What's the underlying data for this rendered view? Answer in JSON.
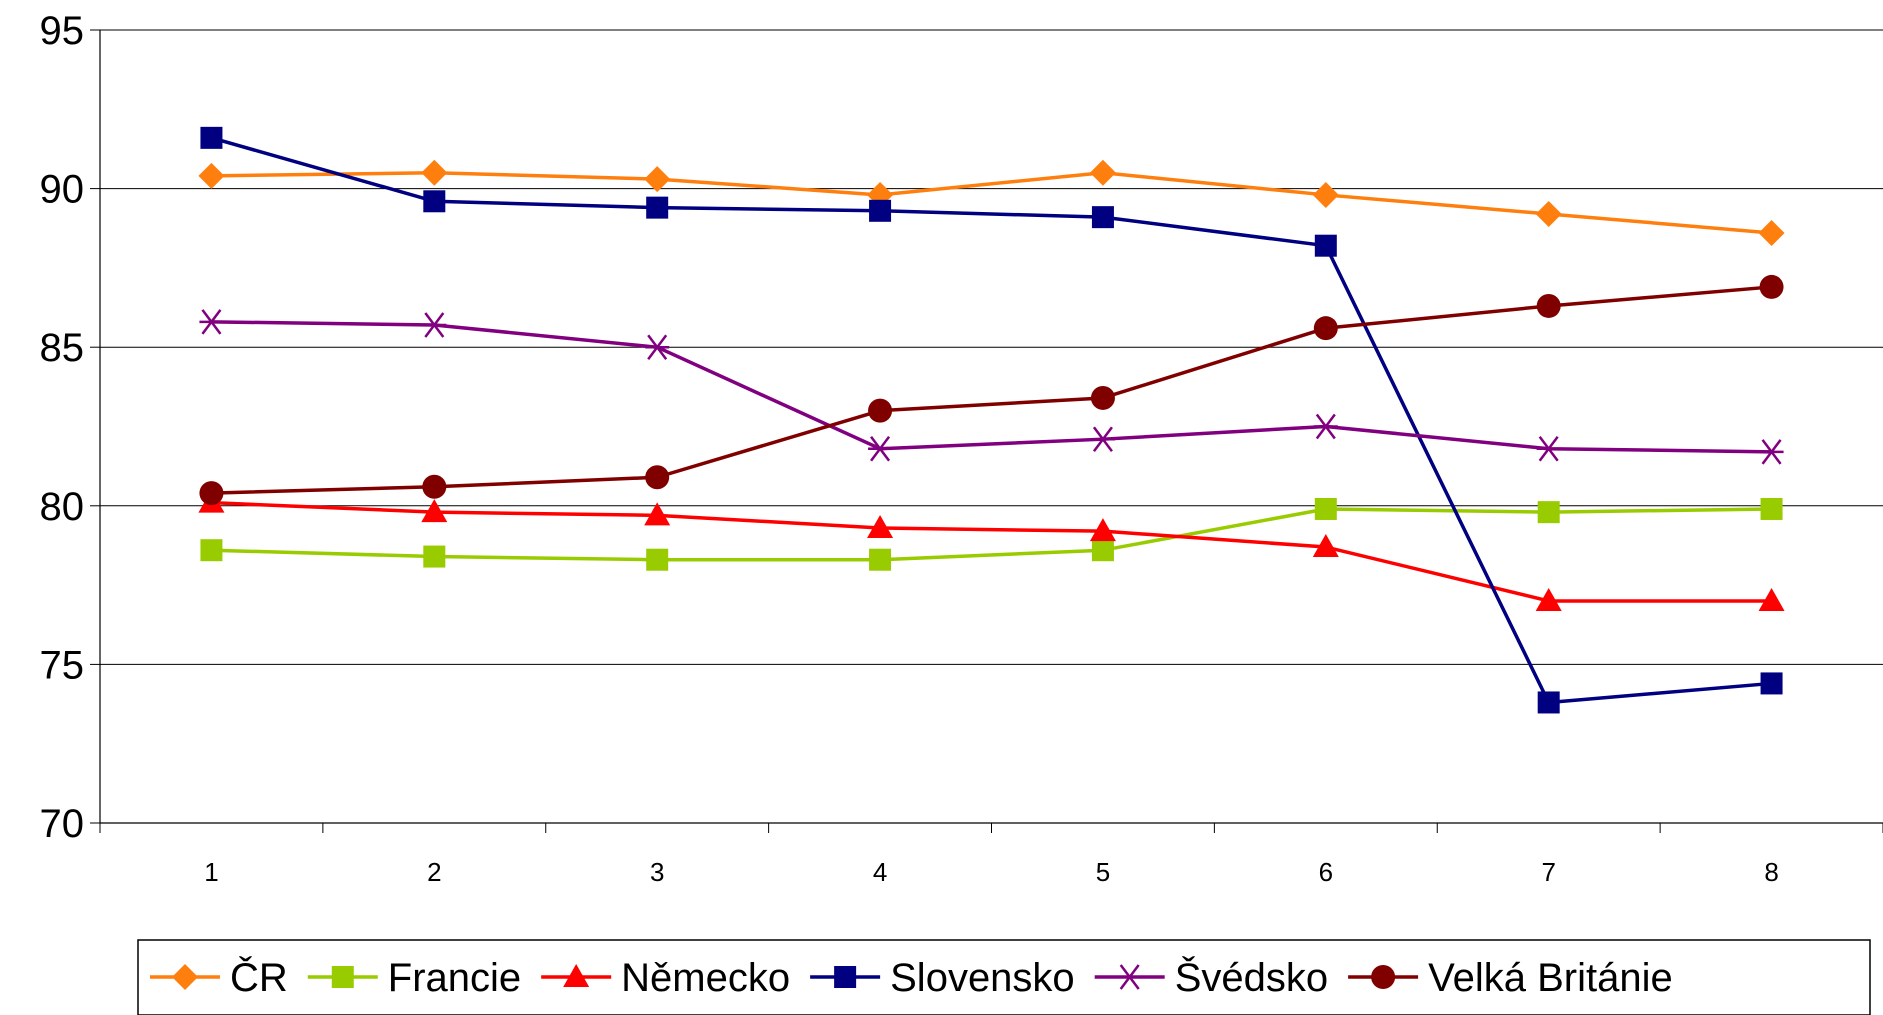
{
  "chart_data": {
    "type": "line",
    "title": "",
    "xlabel": "",
    "ylabel": "",
    "x": [
      1,
      2,
      3,
      4,
      5,
      6,
      7,
      8
    ],
    "ylim": [
      70,
      95
    ],
    "yticks": [
      70,
      75,
      80,
      85,
      90,
      95
    ],
    "grid": "horizontal",
    "legend_position": "bottom",
    "series": [
      {
        "name": "ČR",
        "color": "#ff7f0e",
        "marker": "diamond",
        "values": [
          90.4,
          90.5,
          90.3,
          89.8,
          90.5,
          89.8,
          89.2,
          88.6
        ]
      },
      {
        "name": "Francie",
        "color": "#99cc00",
        "marker": "square",
        "values": [
          78.6,
          78.4,
          78.3,
          78.3,
          78.6,
          79.9,
          79.8,
          79.9
        ]
      },
      {
        "name": "Německo",
        "color": "#ff0000",
        "marker": "triangle",
        "values": [
          80.1,
          79.8,
          79.7,
          79.3,
          79.2,
          78.7,
          77.0,
          77.0
        ]
      },
      {
        "name": "Slovensko",
        "color": "#000080",
        "marker": "square",
        "values": [
          91.6,
          89.6,
          89.4,
          89.3,
          89.1,
          88.2,
          73.8,
          74.4
        ]
      },
      {
        "name": "Švédsko",
        "color": "#800080",
        "marker": "asterisk",
        "values": [
          85.8,
          85.7,
          85.0,
          81.8,
          82.1,
          82.5,
          81.8,
          81.7
        ]
      },
      {
        "name": "Velká Británie",
        "color": "#800000",
        "marker": "circle",
        "values": [
          80.4,
          80.6,
          80.9,
          83.0,
          83.4,
          85.6,
          86.3,
          86.9
        ]
      }
    ]
  }
}
